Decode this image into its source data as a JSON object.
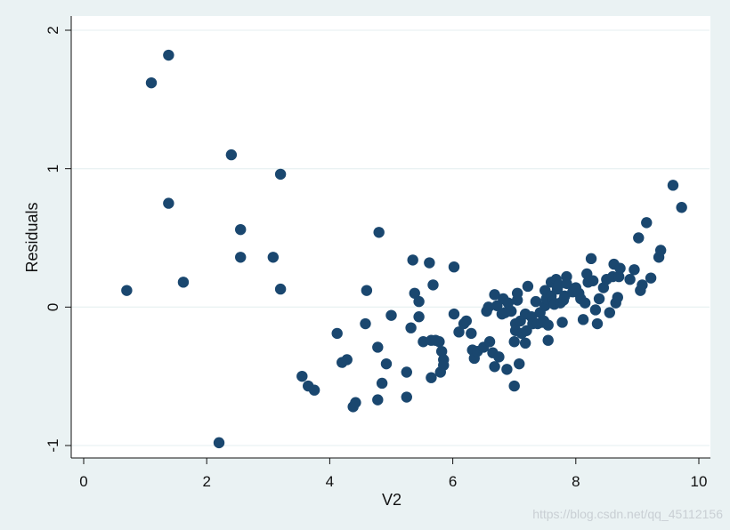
{
  "chart_data": {
    "type": "scatter",
    "title": "",
    "xlabel": "V2",
    "ylabel": "Residuals",
    "xlim": [
      0,
      10
    ],
    "ylim": [
      -1,
      2
    ],
    "x_ticks": [
      0,
      2,
      4,
      6,
      8,
      10
    ],
    "y_ticks": [
      -1,
      0,
      1,
      2
    ],
    "x_tick_labels": [
      "0",
      "2",
      "4",
      "6",
      "8",
      "10"
    ],
    "y_tick_labels": [
      "-1",
      "0",
      "1",
      "2"
    ],
    "grid": "horizontal",
    "marker_color": "#1a476f",
    "background_color": "#eaf2f3",
    "plot_background": "#ffffff",
    "grid_color": "#eaf2f3",
    "points": [
      [
        0.7,
        0.12
      ],
      [
        1.1,
        1.62
      ],
      [
        1.38,
        1.82
      ],
      [
        1.38,
        0.75
      ],
      [
        1.62,
        0.18
      ],
      [
        2.2,
        -0.98
      ],
      [
        2.4,
        1.1
      ],
      [
        2.55,
        0.56
      ],
      [
        2.55,
        0.36
      ],
      [
        3.08,
        0.36
      ],
      [
        3.2,
        0.96
      ],
      [
        3.2,
        0.13
      ],
      [
        3.55,
        -0.5
      ],
      [
        3.65,
        -0.57
      ],
      [
        3.75,
        -0.6
      ],
      [
        4.12,
        -0.19
      ],
      [
        4.2,
        -0.4
      ],
      [
        4.28,
        -0.38
      ],
      [
        4.38,
        -0.72
      ],
      [
        4.42,
        -0.69
      ],
      [
        4.58,
        -0.12
      ],
      [
        4.6,
        0.12
      ],
      [
        4.78,
        -0.29
      ],
      [
        4.78,
        -0.67
      ],
      [
        4.8,
        0.54
      ],
      [
        4.85,
        -0.55
      ],
      [
        4.92,
        -0.41
      ],
      [
        5.0,
        -0.06
      ],
      [
        5.25,
        -0.65
      ],
      [
        5.25,
        -0.47
      ],
      [
        5.32,
        -0.15
      ],
      [
        5.35,
        0.34
      ],
      [
        5.38,
        0.1
      ],
      [
        5.45,
        0.04
      ],
      [
        5.45,
        -0.07
      ],
      [
        5.52,
        -0.25
      ],
      [
        5.62,
        0.32
      ],
      [
        5.65,
        -0.24
      ],
      [
        5.65,
        -0.51
      ],
      [
        5.68,
        0.16
      ],
      [
        5.72,
        -0.24
      ],
      [
        5.78,
        -0.25
      ],
      [
        5.8,
        -0.47
      ],
      [
        5.82,
        -0.32
      ],
      [
        5.85,
        -0.38
      ],
      [
        5.85,
        -0.42
      ],
      [
        6.02,
        0.29
      ],
      [
        6.02,
        -0.05
      ],
      [
        6.1,
        -0.18
      ],
      [
        6.18,
        -0.12
      ],
      [
        6.22,
        -0.1
      ],
      [
        6.3,
        -0.19
      ],
      [
        6.32,
        -0.31
      ],
      [
        6.35,
        -0.37
      ],
      [
        6.4,
        -0.32
      ],
      [
        6.5,
        -0.29
      ],
      [
        6.55,
        -0.03
      ],
      [
        6.58,
        0.0
      ],
      [
        6.6,
        -0.25
      ],
      [
        6.65,
        -0.33
      ],
      [
        6.68,
        -0.43
      ],
      [
        6.68,
        0.09
      ],
      [
        6.72,
        0.01
      ],
      [
        6.75,
        -0.36
      ],
      [
        6.8,
        -0.05
      ],
      [
        6.82,
        0.06
      ],
      [
        6.85,
        -0.04
      ],
      [
        6.88,
        -0.45
      ],
      [
        6.9,
        0.03
      ],
      [
        6.95,
        -0.03
      ],
      [
        7.0,
        -0.57
      ],
      [
        7.0,
        -0.25
      ],
      [
        7.02,
        -0.12
      ],
      [
        7.02,
        -0.17
      ],
      [
        7.05,
        0.05
      ],
      [
        7.05,
        0.1
      ],
      [
        7.08,
        -0.41
      ],
      [
        7.1,
        -0.1
      ],
      [
        7.12,
        -0.19
      ],
      [
        7.18,
        -0.26
      ],
      [
        7.18,
        -0.05
      ],
      [
        7.2,
        -0.17
      ],
      [
        7.22,
        0.15
      ],
      [
        7.28,
        -0.07
      ],
      [
        7.3,
        -0.12
      ],
      [
        7.35,
        0.04
      ],
      [
        7.38,
        -0.12
      ],
      [
        7.42,
        -0.04
      ],
      [
        7.45,
        -0.11
      ],
      [
        7.48,
        -0.1
      ],
      [
        7.5,
        0.01
      ],
      [
        7.5,
        0.12
      ],
      [
        7.52,
        0.06
      ],
      [
        7.55,
        -0.13
      ],
      [
        7.55,
        -0.24
      ],
      [
        7.6,
        0.08
      ],
      [
        7.6,
        0.18
      ],
      [
        7.62,
        0.04
      ],
      [
        7.65,
        0.02
      ],
      [
        7.68,
        0.2
      ],
      [
        7.7,
        0.13
      ],
      [
        7.72,
        0.16
      ],
      [
        7.75,
        0.03
      ],
      [
        7.78,
        -0.11
      ],
      [
        7.8,
        0.05
      ],
      [
        7.82,
        0.08
      ],
      [
        7.85,
        0.22
      ],
      [
        7.85,
        0.17
      ],
      [
        7.95,
        0.11
      ],
      [
        8.0,
        0.14
      ],
      [
        8.05,
        0.1
      ],
      [
        8.08,
        0.06
      ],
      [
        8.12,
        -0.09
      ],
      [
        8.15,
        0.03
      ],
      [
        8.18,
        0.24
      ],
      [
        8.2,
        0.18
      ],
      [
        8.25,
        0.35
      ],
      [
        8.28,
        0.19
      ],
      [
        8.32,
        -0.02
      ],
      [
        8.35,
        -0.12
      ],
      [
        8.38,
        0.06
      ],
      [
        8.45,
        0.14
      ],
      [
        8.5,
        0.2
      ],
      [
        8.55,
        -0.04
      ],
      [
        8.6,
        0.22
      ],
      [
        8.62,
        0.31
      ],
      [
        8.65,
        0.03
      ],
      [
        8.68,
        0.07
      ],
      [
        8.7,
        0.22
      ],
      [
        8.72,
        0.28
      ],
      [
        8.88,
        0.2
      ],
      [
        8.95,
        0.27
      ],
      [
        9.02,
        0.5
      ],
      [
        9.05,
        0.12
      ],
      [
        9.08,
        0.16
      ],
      [
        9.15,
        0.61
      ],
      [
        9.22,
        0.21
      ],
      [
        9.35,
        0.36
      ],
      [
        9.38,
        0.41
      ],
      [
        9.58,
        0.88
      ],
      [
        9.72,
        0.72
      ]
    ]
  },
  "watermark": "https://blog.csdn.net/qq_45112156"
}
